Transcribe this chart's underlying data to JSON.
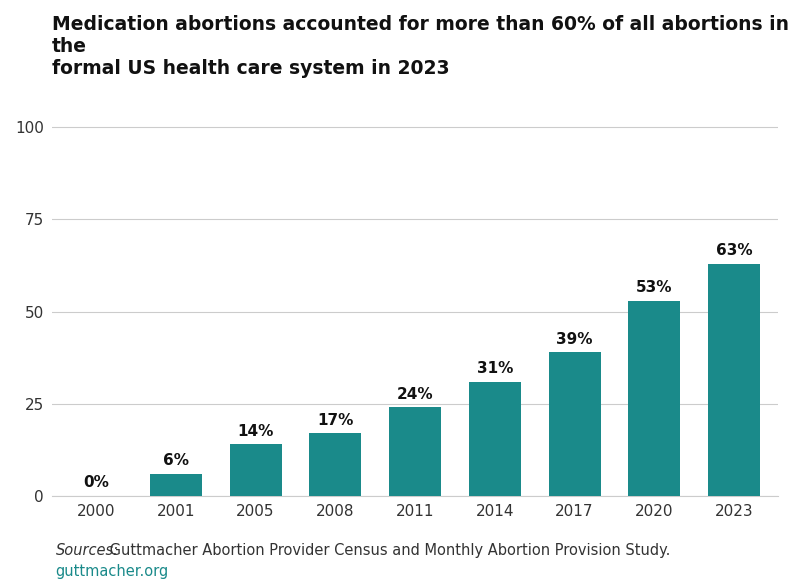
{
  "categories": [
    "2000",
    "2001",
    "2005",
    "2008",
    "2011",
    "2014",
    "2017",
    "2020",
    "2023"
  ],
  "values": [
    0,
    6,
    14,
    17,
    24,
    31,
    39,
    53,
    63
  ],
  "labels": [
    "0%",
    "6%",
    "14%",
    "17%",
    "24%",
    "31%",
    "39%",
    "53%",
    "63%"
  ],
  "bar_color": "#1a8a8a",
  "title_line1": "Medication abortions accounted for more than 60% of all abortions in the",
  "title_line2": "formal US health care system in 2023",
  "yticks": [
    0,
    25,
    50,
    75,
    100
  ],
  "ylim": [
    0,
    110
  ],
  "source_italic": "Sources:",
  "source_text": " Guttmacher Abortion Provider Census and Monthly Abortion Provision Study.",
  "footer_text": "guttmacher.org",
  "background_color": "#ffffff",
  "grid_color": "#cccccc",
  "title_fontsize": 13.5,
  "label_fontsize": 11,
  "tick_fontsize": 11,
  "source_fontsize": 10.5,
  "footer_fontsize": 10.5
}
